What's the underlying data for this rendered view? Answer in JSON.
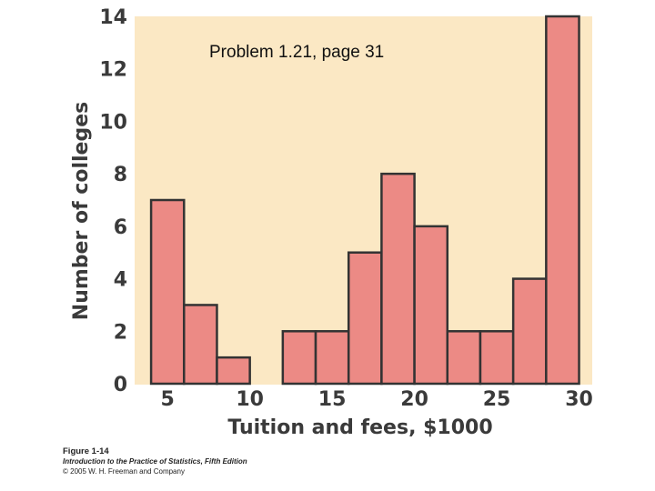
{
  "chart_data": {
    "type": "bar",
    "title": "Problem 1.21, page 31",
    "xlabel": "Tuition and fees, $1000",
    "ylabel": "Number of colleges",
    "xlim": [
      3,
      30.8
    ],
    "ylim": [
      0,
      14
    ],
    "xticks": [
      5,
      10,
      15,
      20,
      25,
      30
    ],
    "yticks": [
      0,
      2,
      4,
      6,
      8,
      10,
      12,
      14
    ],
    "bin_width": 2,
    "bins": [
      {
        "x0": 4,
        "x1": 6,
        "value": 7
      },
      {
        "x0": 6,
        "x1": 8,
        "value": 3
      },
      {
        "x0": 8,
        "x1": 10,
        "value": 1
      },
      {
        "x0": 10,
        "x1": 12,
        "value": 0
      },
      {
        "x0": 12,
        "x1": 14,
        "value": 2
      },
      {
        "x0": 14,
        "x1": 16,
        "value": 2
      },
      {
        "x0": 16,
        "x1": 18,
        "value": 5
      },
      {
        "x0": 18,
        "x1": 20,
        "value": 8
      },
      {
        "x0": 20,
        "x1": 22,
        "value": 6
      },
      {
        "x0": 22,
        "x1": 24,
        "value": 2
      },
      {
        "x0": 24,
        "x1": 26,
        "value": 2
      },
      {
        "x0": 26,
        "x1": 28,
        "value": 4
      },
      {
        "x0": 28,
        "x1": 30,
        "value": 14
      }
    ],
    "grid": false,
    "colors": {
      "bar_fill": "#ec8a85",
      "plot_background": "#fbe8c4",
      "bar_stroke": "#333333"
    }
  },
  "caption": {
    "figure": "Figure 1-14",
    "book": "Introduction to the Practice of Statistics, Fifth Edition",
    "copyright": "© 2005 W. H. Freeman and Company"
  }
}
